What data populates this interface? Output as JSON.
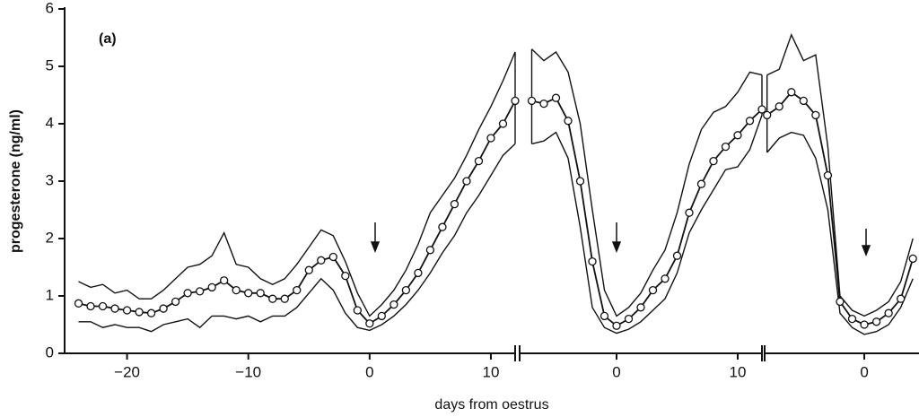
{
  "chart_data": {
    "type": "line",
    "annotation": "(a)",
    "ylabel": "progesterone (ng/ml)",
    "xlabel": "days from oestrus",
    "ylim": [
      0,
      6
    ],
    "yticks": [
      0,
      1,
      2,
      3,
      4,
      5,
      6
    ],
    "panels": [
      {
        "xlim": [
          -25,
          12
        ],
        "xticks": [
          {
            "value": -20,
            "label": "−20"
          },
          {
            "value": -10,
            "label": "−10"
          },
          0,
          10
        ],
        "x": [
          -24,
          -23,
          -22,
          -21,
          -20,
          -19,
          -18,
          -17,
          -16,
          -15,
          -14,
          -13,
          -12,
          -11,
          -10,
          -9,
          -8,
          -7,
          -6,
          -5,
          -4,
          -3,
          -2,
          -1,
          0,
          1,
          2,
          3,
          4,
          5,
          6,
          7,
          8,
          9,
          10,
          11,
          12
        ],
        "series": [
          {
            "color": "#111111",
            "values": [
              0.87,
              0.82,
              0.82,
              0.78,
              0.75,
              0.72,
              0.7,
              0.78,
              0.9,
              1.05,
              1.08,
              1.15,
              1.27,
              1.1,
              1.05,
              1.05,
              0.95,
              0.95,
              1.1,
              1.45,
              1.62,
              1.68,
              1.35,
              0.75,
              0.52,
              0.65,
              0.85,
              1.1,
              1.4,
              1.8,
              2.2,
              2.6,
              3.0,
              3.35,
              3.75,
              4.0,
              4.4
            ]
          },
          {
            "color": "#111111",
            "values": [
              1.25,
              1.15,
              1.2,
              1.05,
              1.1,
              0.95,
              0.95,
              1.1,
              1.3,
              1.5,
              1.55,
              1.7,
              2.1,
              1.55,
              1.5,
              1.3,
              1.2,
              1.3,
              1.55,
              1.85,
              2.15,
              2.05,
              1.6,
              1.05,
              0.65,
              0.85,
              1.1,
              1.45,
              1.9,
              2.45,
              2.75,
              3.05,
              3.45,
              3.9,
              4.3,
              4.75,
              5.25
            ]
          },
          {
            "color": "#111111",
            "values": [
              0.55,
              0.55,
              0.45,
              0.5,
              0.45,
              0.45,
              0.38,
              0.5,
              0.55,
              0.6,
              0.45,
              0.65,
              0.65,
              0.6,
              0.65,
              0.55,
              0.65,
              0.65,
              0.8,
              1.05,
              1.3,
              1.1,
              0.7,
              0.45,
              0.4,
              0.5,
              0.65,
              0.85,
              1.1,
              1.4,
              1.75,
              2.05,
              2.45,
              2.75,
              3.1,
              3.45,
              3.65
            ]
          }
        ]
      },
      {
        "xlim": [
          -8,
          12
        ],
        "xticks": [
          0,
          10
        ],
        "x": [
          -7,
          -6,
          -5,
          -4,
          -3,
          -2,
          -1,
          0,
          1,
          2,
          3,
          4,
          5,
          6,
          7,
          8,
          9,
          10,
          11,
          12
        ],
        "series": [
          {
            "color": "#111111",
            "values": [
              4.4,
              4.35,
              4.45,
              4.05,
              3.0,
              1.6,
              0.65,
              0.48,
              0.6,
              0.8,
              1.1,
              1.3,
              1.7,
              2.45,
              2.95,
              3.35,
              3.6,
              3.8,
              4.05,
              4.25
            ]
          },
          {
            "color": "#111111",
            "values": [
              5.3,
              5.1,
              5.25,
              4.9,
              4.0,
              2.5,
              1.1,
              0.65,
              0.8,
              1.05,
              1.45,
              1.8,
              2.45,
              3.3,
              3.9,
              4.2,
              4.3,
              4.55,
              4.9,
              4.85
            ]
          },
          {
            "color": "#111111",
            "values": [
              3.65,
              3.7,
              3.85,
              3.4,
              2.2,
              0.8,
              0.45,
              0.35,
              0.42,
              0.55,
              0.75,
              0.95,
              1.4,
              2.1,
              2.5,
              2.85,
              3.2,
              3.25,
              3.55,
              4.15
            ]
          }
        ]
      },
      {
        "xlim": [
          -8.2,
          4.5
        ],
        "xticks": [
          0
        ],
        "x": [
          -8,
          -7,
          -6,
          -5,
          -4,
          -3,
          -2,
          -1,
          0,
          1,
          2,
          3,
          4
        ],
        "series": [
          {
            "color": "#111111",
            "values": [
              4.15,
              4.3,
              4.55,
              4.4,
              4.15,
              3.1,
              0.9,
              0.6,
              0.5,
              0.55,
              0.7,
              0.95,
              1.65
            ]
          },
          {
            "color": "#111111",
            "values": [
              4.85,
              4.95,
              5.55,
              5.1,
              5.2,
              3.6,
              1.0,
              0.75,
              0.65,
              0.75,
              0.9,
              1.25,
              2.0
            ]
          },
          {
            "color": "#111111",
            "values": [
              3.5,
              3.75,
              3.85,
              3.8,
              3.4,
              2.5,
              0.7,
              0.45,
              0.33,
              0.38,
              0.5,
              0.8,
              1.3
            ]
          }
        ]
      }
    ]
  }
}
